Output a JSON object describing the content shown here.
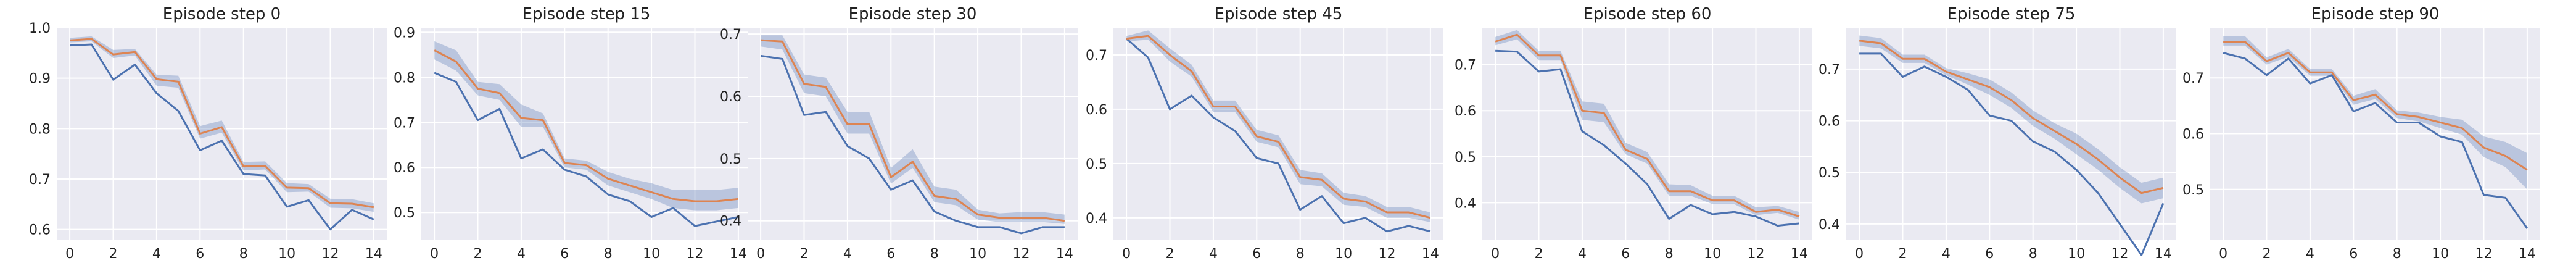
{
  "figure": {
    "colors": {
      "background": "#eaeaf2",
      "series_blue": "#4c72b0",
      "series_orange": "#dd8452",
      "band": "#4c72b0"
    }
  },
  "chart_data": [
    {
      "type": "line",
      "title": "Episode step 0",
      "x": [
        0,
        1,
        2,
        3,
        4,
        5,
        6,
        7,
        8,
        9,
        10,
        11,
        12,
        13,
        14
      ],
      "xlim": [
        -0.6,
        14.6
      ],
      "ylim": [
        0.58,
        1.0
      ],
      "xticks": [
        0,
        2,
        4,
        6,
        8,
        10,
        12,
        14
      ],
      "yticks": [
        0.6,
        0.7,
        0.8,
        0.9,
        1.0
      ],
      "yticklabels": [
        "0.6",
        "0.7",
        "0.8",
        "0.9",
        "1.0"
      ],
      "grid": true,
      "series": [
        {
          "values": [
            0.965,
            0.967,
            0.897,
            0.927,
            0.87,
            0.835,
            0.757,
            0.776,
            0.71,
            0.707,
            0.645,
            0.658,
            0.6,
            0.639,
            0.62
          ]
        },
        {
          "values": [
            0.975,
            0.978,
            0.947,
            0.952,
            0.898,
            0.893,
            0.79,
            0.803,
            0.725,
            0.726,
            0.683,
            0.682,
            0.652,
            0.651,
            0.644
          ]
        }
      ],
      "band": {
        "lower": [
          0.971,
          0.973,
          0.94,
          0.945,
          0.885,
          0.881,
          0.78,
          0.792,
          0.717,
          0.719,
          0.674,
          0.675,
          0.643,
          0.642,
          0.635
        ],
        "upper": [
          0.98,
          0.983,
          0.956,
          0.958,
          0.907,
          0.905,
          0.805,
          0.816,
          0.734,
          0.735,
          0.692,
          0.69,
          0.661,
          0.66,
          0.652
        ]
      }
    },
    {
      "type": "line",
      "title": "Episode step 15",
      "x": [
        0,
        1,
        2,
        3,
        4,
        5,
        6,
        7,
        8,
        9,
        10,
        11,
        12,
        13,
        14
      ],
      "xlim": [
        -0.6,
        14.6
      ],
      "ylim": [
        0.44,
        0.91
      ],
      "xticks": [
        0,
        2,
        4,
        6,
        8,
        10,
        12,
        14
      ],
      "yticks": [
        0.5,
        0.6,
        0.7,
        0.8,
        0.9
      ],
      "yticklabels": [
        "0.5",
        "0.6",
        "0.7",
        "0.8",
        "0.9"
      ],
      "grid": true,
      "series": [
        {
          "values": [
            0.81,
            0.79,
            0.705,
            0.73,
            0.62,
            0.64,
            0.595,
            0.58,
            0.54,
            0.525,
            0.49,
            0.51,
            0.47,
            0.48,
            0.49
          ]
        },
        {
          "values": [
            0.86,
            0.835,
            0.775,
            0.765,
            0.71,
            0.705,
            0.61,
            0.605,
            0.575,
            0.56,
            0.545,
            0.53,
            0.525,
            0.525,
            0.53
          ]
        }
      ],
      "band": {
        "lower": [
          0.84,
          0.815,
          0.76,
          0.75,
          0.69,
          0.69,
          0.6,
          0.595,
          0.56,
          0.545,
          0.53,
          0.51,
          0.505,
          0.505,
          0.51
        ],
        "upper": [
          0.88,
          0.86,
          0.79,
          0.785,
          0.74,
          0.72,
          0.62,
          0.615,
          0.59,
          0.575,
          0.565,
          0.55,
          0.55,
          0.55,
          0.555
        ]
      }
    },
    {
      "type": "line",
      "title": "Episode step 30",
      "x": [
        0,
        1,
        2,
        3,
        4,
        5,
        6,
        7,
        8,
        9,
        10,
        11,
        12,
        13,
        14
      ],
      "xlim": [
        -0.6,
        14.6
      ],
      "ylim": [
        0.37,
        0.71
      ],
      "xticks": [
        0,
        2,
        4,
        6,
        8,
        10,
        12,
        14
      ],
      "yticks": [
        0.4,
        0.5,
        0.6,
        0.7
      ],
      "yticklabels": [
        "0.4",
        "0.5",
        "0.6",
        "0.7"
      ],
      "grid": true,
      "series": [
        {
          "values": [
            0.665,
            0.66,
            0.57,
            0.575,
            0.52,
            0.5,
            0.45,
            0.465,
            0.415,
            0.4,
            0.39,
            0.39,
            0.38,
            0.39,
            0.39
          ]
        },
        {
          "values": [
            0.69,
            0.688,
            0.62,
            0.615,
            0.555,
            0.555,
            0.47,
            0.495,
            0.44,
            0.435,
            0.41,
            0.405,
            0.405,
            0.405,
            0.4
          ]
        }
      ],
      "band": {
        "lower": [
          0.68,
          0.675,
          0.605,
          0.6,
          0.54,
          0.54,
          0.46,
          0.485,
          0.43,
          0.425,
          0.402,
          0.398,
          0.398,
          0.398,
          0.395
        ],
        "upper": [
          0.698,
          0.698,
          0.635,
          0.63,
          0.575,
          0.575,
          0.485,
          0.515,
          0.455,
          0.45,
          0.418,
          0.412,
          0.414,
          0.414,
          0.41
        ]
      }
    },
    {
      "type": "line",
      "title": "Episode step 45",
      "x": [
        0,
        1,
        2,
        3,
        4,
        5,
        6,
        7,
        8,
        9,
        10,
        11,
        12,
        13,
        14
      ],
      "xlim": [
        -0.6,
        14.6
      ],
      "ylim": [
        0.36,
        0.75
      ],
      "xticks": [
        0,
        2,
        4,
        6,
        8,
        10,
        12,
        14
      ],
      "yticks": [
        0.4,
        0.5,
        0.6,
        0.7
      ],
      "yticklabels": [
        "0.4",
        "0.5",
        "0.6",
        "0.7"
      ],
      "grid": true,
      "series": [
        {
          "values": [
            0.73,
            0.695,
            0.6,
            0.625,
            0.585,
            0.56,
            0.51,
            0.5,
            0.415,
            0.44,
            0.39,
            0.4,
            0.375,
            0.385,
            0.375
          ]
        },
        {
          "values": [
            0.73,
            0.735,
            0.7,
            0.67,
            0.605,
            0.605,
            0.55,
            0.54,
            0.475,
            0.47,
            0.435,
            0.43,
            0.41,
            0.41,
            0.4
          ]
        }
      ],
      "band": {
        "lower": [
          0.725,
          0.728,
          0.688,
          0.66,
          0.595,
          0.595,
          0.54,
          0.53,
          0.462,
          0.458,
          0.424,
          0.42,
          0.4,
          0.4,
          0.392
        ],
        "upper": [
          0.735,
          0.745,
          0.712,
          0.682,
          0.616,
          0.616,
          0.562,
          0.552,
          0.488,
          0.482,
          0.446,
          0.44,
          0.42,
          0.42,
          0.41
        ]
      }
    },
    {
      "type": "line",
      "title": "Episode step 60",
      "x": [
        0,
        1,
        2,
        3,
        4,
        5,
        6,
        7,
        8,
        9,
        10,
        11,
        12,
        13,
        14
      ],
      "xlim": [
        -0.6,
        14.6
      ],
      "ylim": [
        0.32,
        0.78
      ],
      "xticks": [
        0,
        2,
        4,
        6,
        8,
        10,
        12,
        14
      ],
      "yticks": [
        0.4,
        0.5,
        0.6,
        0.7
      ],
      "yticklabels": [
        "0.4",
        "0.5",
        "0.6",
        "0.7"
      ],
      "grid": true,
      "series": [
        {
          "values": [
            0.73,
            0.728,
            0.685,
            0.69,
            0.555,
            0.525,
            0.485,
            0.44,
            0.365,
            0.395,
            0.375,
            0.38,
            0.37,
            0.35,
            0.355
          ]
        },
        {
          "values": [
            0.75,
            0.765,
            0.72,
            0.72,
            0.6,
            0.595,
            0.515,
            0.495,
            0.425,
            0.425,
            0.405,
            0.405,
            0.38,
            0.385,
            0.37
          ]
        }
      ],
      "band": {
        "lower": [
          0.742,
          0.755,
          0.71,
          0.71,
          0.58,
          0.575,
          0.505,
          0.485,
          0.415,
          0.415,
          0.397,
          0.397,
          0.373,
          0.378,
          0.363
        ],
        "upper": [
          0.76,
          0.775,
          0.73,
          0.73,
          0.62,
          0.615,
          0.53,
          0.51,
          0.44,
          0.438,
          0.415,
          0.415,
          0.39,
          0.393,
          0.38
        ]
      }
    },
    {
      "type": "line",
      "title": "Episode step 75",
      "x": [
        0,
        1,
        2,
        3,
        4,
        5,
        6,
        7,
        8,
        9,
        10,
        11,
        12,
        13,
        14
      ],
      "xlim": [
        -0.6,
        14.6
      ],
      "ylim": [
        0.37,
        0.78
      ],
      "xticks": [
        0,
        2,
        4,
        6,
        8,
        10,
        12,
        14
      ],
      "yticks": [
        0.4,
        0.5,
        0.6,
        0.7
      ],
      "yticklabels": [
        "0.4",
        "0.5",
        "0.6",
        "0.7"
      ],
      "grid": true,
      "series": [
        {
          "values": [
            0.73,
            0.73,
            0.685,
            0.705,
            0.685,
            0.66,
            0.61,
            0.6,
            0.56,
            0.54,
            0.505,
            0.46,
            0.4,
            0.34,
            0.44
          ]
        },
        {
          "values": [
            0.755,
            0.75,
            0.72,
            0.72,
            0.695,
            0.68,
            0.665,
            0.64,
            0.605,
            0.58,
            0.555,
            0.525,
            0.49,
            0.46,
            0.47
          ]
        }
      ],
      "band": {
        "lower": [
          0.745,
          0.74,
          0.712,
          0.712,
          0.688,
          0.67,
          0.65,
          0.625,
          0.59,
          0.565,
          0.535,
          0.505,
          0.47,
          0.44,
          0.45
        ],
        "upper": [
          0.765,
          0.76,
          0.728,
          0.728,
          0.702,
          0.692,
          0.68,
          0.655,
          0.62,
          0.595,
          0.575,
          0.545,
          0.51,
          0.48,
          0.49
        ]
      }
    },
    {
      "type": "line",
      "title": "Episode step 90",
      "x": [
        0,
        1,
        2,
        3,
        4,
        5,
        6,
        7,
        8,
        9,
        10,
        11,
        12,
        13,
        14
      ],
      "xlim": [
        -0.6,
        14.6
      ],
      "ylim": [
        0.41,
        0.79
      ],
      "xticks": [
        0,
        2,
        4,
        6,
        8,
        10,
        12,
        14
      ],
      "yticks": [
        0.5,
        0.6,
        0.7
      ],
      "yticklabels": [
        "0.5",
        "0.6",
        "0.7"
      ],
      "grid": true,
      "series": [
        {
          "values": [
            0.745,
            0.735,
            0.705,
            0.735,
            0.69,
            0.705,
            0.64,
            0.655,
            0.62,
            0.62,
            0.595,
            0.585,
            0.49,
            0.485,
            0.43
          ]
        },
        {
          "values": [
            0.765,
            0.765,
            0.73,
            0.745,
            0.71,
            0.71,
            0.66,
            0.67,
            0.635,
            0.63,
            0.62,
            0.61,
            0.575,
            0.56,
            0.535
          ]
        }
      ],
      "band": {
        "lower": [
          0.758,
          0.758,
          0.724,
          0.738,
          0.704,
          0.704,
          0.652,
          0.662,
          0.628,
          0.622,
          0.61,
          0.598,
          0.558,
          0.54,
          0.5
        ],
        "upper": [
          0.775,
          0.775,
          0.737,
          0.752,
          0.716,
          0.716,
          0.668,
          0.68,
          0.642,
          0.638,
          0.63,
          0.625,
          0.595,
          0.585,
          0.565
        ]
      }
    }
  ]
}
